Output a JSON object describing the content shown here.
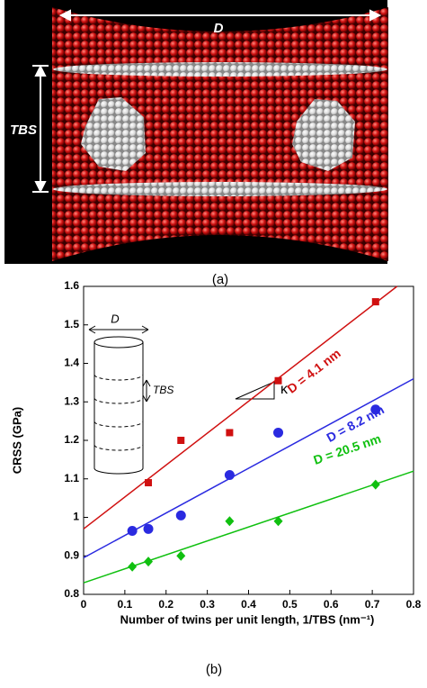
{
  "panel_a": {
    "label": "(a)",
    "width_label": "D",
    "spacing_label": "TBS"
  },
  "chart_data": {
    "type": "scatter",
    "panel_label": "(b)",
    "x_label": "Number of twins per unit length, 1/TBS (nm⁻¹)",
    "y_label": "CRSS (GPa)",
    "xlim": [
      0,
      0.8
    ],
    "ylim": [
      0.8,
      1.6
    ],
    "xticks": [
      0,
      0.1,
      0.2,
      0.3,
      0.4,
      0.5,
      0.6,
      0.7,
      0.8
    ],
    "yticks": [
      0.8,
      0.9,
      1,
      1.1,
      1.2,
      1.3,
      1.4,
      1.5,
      1.6
    ],
    "inset_labels": {
      "diameter": "D",
      "spacing": "TBS",
      "slope": "κ"
    },
    "series": [
      {
        "name": "D = 4.1 nm",
        "color": "#d01010",
        "marker": "square",
        "x": [
          0.157,
          0.236,
          0.354,
          0.472,
          0.708
        ],
        "values": [
          1.09,
          1.2,
          1.22,
          1.355,
          1.56
        ],
        "fit": {
          "x": [
            0,
            0.76
          ],
          "values": [
            0.97,
            1.6
          ]
        }
      },
      {
        "name": "D = 8.2 nm",
        "color": "#2a2ae0",
        "marker": "circle",
        "x": [
          0.118,
          0.157,
          0.236,
          0.354,
          0.472,
          0.708
        ],
        "values": [
          0.965,
          0.97,
          1.005,
          1.11,
          1.22,
          1.28
        ],
        "fit": {
          "x": [
            0,
            0.8
          ],
          "values": [
            0.895,
            1.36
          ]
        }
      },
      {
        "name": "D = 20.5 nm",
        "color": "#10c010",
        "marker": "diamond",
        "x": [
          0.118,
          0.157,
          0.236,
          0.354,
          0.472,
          0.708
        ],
        "values": [
          0.872,
          0.885,
          0.9,
          0.99,
          0.99,
          1.085
        ],
        "fit": {
          "x": [
            0,
            0.8
          ],
          "values": [
            0.83,
            1.12
          ]
        }
      }
    ]
  }
}
